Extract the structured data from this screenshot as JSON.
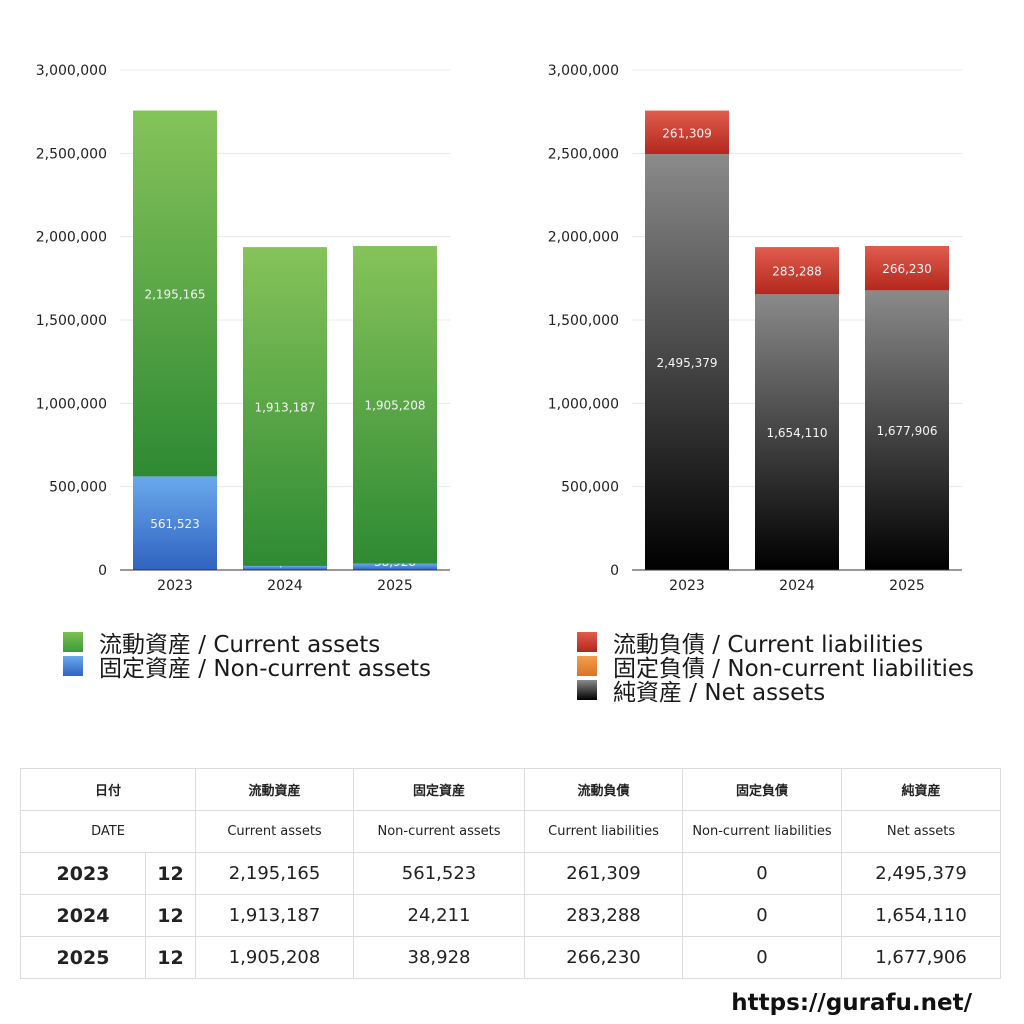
{
  "charts": [
    {
      "id": "assets",
      "type": "bar",
      "stacked": true,
      "categories": [
        "2023",
        "2024",
        "2025"
      ],
      "ylim": [
        0,
        3000000
      ],
      "yticks": [
        "0",
        "500,000",
        "1,000,000",
        "1,500,000",
        "2,000,000",
        "2,500,000",
        "3,000,000"
      ],
      "series": [
        {
          "name": "固定資産 / Non-current assets",
          "values": [
            561523,
            24211,
            38928
          ],
          "labels": [
            "561,523",
            "24,211",
            "38,928"
          ],
          "color_top": "#6aa9ec",
          "color_bottom": "#2f63c0"
        },
        {
          "name": "流動資産 / Current assets",
          "values": [
            2195165,
            1913187,
            1905208
          ],
          "labels": [
            "2,195,165",
            "1,913,187",
            "1,905,208"
          ],
          "color_top": "#86c35a",
          "color_bottom": "#2e8a33"
        }
      ]
    },
    {
      "id": "liabilities",
      "type": "bar",
      "stacked": true,
      "categories": [
        "2023",
        "2024",
        "2025"
      ],
      "ylim": [
        0,
        3000000
      ],
      "yticks": [
        "0",
        "500,000",
        "1,000,000",
        "1,500,000",
        "2,000,000",
        "2,500,000",
        "3,000,000"
      ],
      "series": [
        {
          "name": "純資産 / Net assets",
          "values": [
            2495379,
            1654110,
            1677906
          ],
          "labels": [
            "2,495,379",
            "1,654,110",
            "1,677,906"
          ],
          "color_top": "#8a8a8a",
          "color_bottom": "#000000"
        },
        {
          "name": "固定負債 / Non-current liabilities",
          "values": [
            0,
            0,
            0
          ],
          "labels": [
            "0",
            "0",
            "0"
          ],
          "color_top": "#f0a050",
          "color_bottom": "#d87422"
        },
        {
          "name": "流動負債 / Current liabilities",
          "values": [
            261309,
            283288,
            266230
          ],
          "labels": [
            "261,309",
            "283,288",
            "266,230"
          ],
          "color_top": "#e05d4e",
          "color_bottom": "#b3271c"
        }
      ]
    }
  ],
  "legends": {
    "assets": [
      {
        "label": "流動資産 / Current assets",
        "color": "#5fae3f"
      },
      {
        "label": "固定資産 / Non-current assets",
        "color": "#3b78d6"
      }
    ],
    "liabilities": [
      {
        "label": "流動負債 / Current liabilities",
        "color": "#d0453a"
      },
      {
        "label": "固定負債 / Non-current liabilities",
        "color": "#e8893a"
      },
      {
        "label": "純資産 / Net assets",
        "color": "#3a3a3a"
      }
    ]
  },
  "table": {
    "header_jp": [
      "日付",
      "流動資産",
      "固定資産",
      "流動負債",
      "固定負債",
      "純資産"
    ],
    "header_en": [
      "DATE",
      "Current assets",
      "Non-current assets",
      "Current liabilities",
      "Non-current liabilities",
      "Net assets"
    ],
    "rows": [
      {
        "year": "2023",
        "month": "12",
        "values": [
          "2,195,165",
          "561,523",
          "261,309",
          "0",
          "2,495,379"
        ]
      },
      {
        "year": "2024",
        "month": "12",
        "values": [
          "1,913,187",
          "24,211",
          "283,288",
          "0",
          "1,654,110"
        ]
      },
      {
        "year": "2025",
        "month": "12",
        "values": [
          "1,905,208",
          "38,928",
          "266,230",
          "0",
          "1,677,906"
        ]
      }
    ]
  },
  "footer": {
    "url": "https://gurafu.net/"
  }
}
